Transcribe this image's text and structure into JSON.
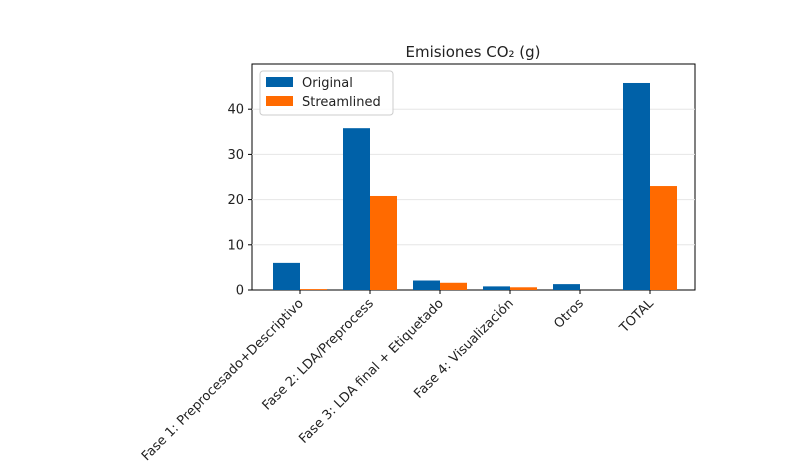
{
  "chart_data": {
    "type": "bar",
    "title": "Emisiones CO₂ (g)",
    "xlabel": "",
    "ylabel": "",
    "categories": [
      "Fase 1: Preprocesado+Descriptivo",
      "Fase 2: LDA/Preprocess",
      "Fase 3: LDA final + Etiquetado",
      "Fase 4: Visualización",
      "Otros",
      "TOTAL"
    ],
    "series": [
      {
        "name": "Original",
        "color": "#0061a8",
        "values": [
          6.0,
          35.8,
          2.1,
          0.8,
          1.3,
          45.8
        ]
      },
      {
        "name": "Streamlined",
        "color": "#ff6a00",
        "values": [
          0.2,
          20.8,
          1.6,
          0.6,
          0.0,
          23.0
        ]
      }
    ],
    "yticks": [
      0,
      10,
      20,
      30,
      40
    ],
    "ylim": [
      0,
      50
    ],
    "grid": "y",
    "legend_position": "top-left"
  }
}
